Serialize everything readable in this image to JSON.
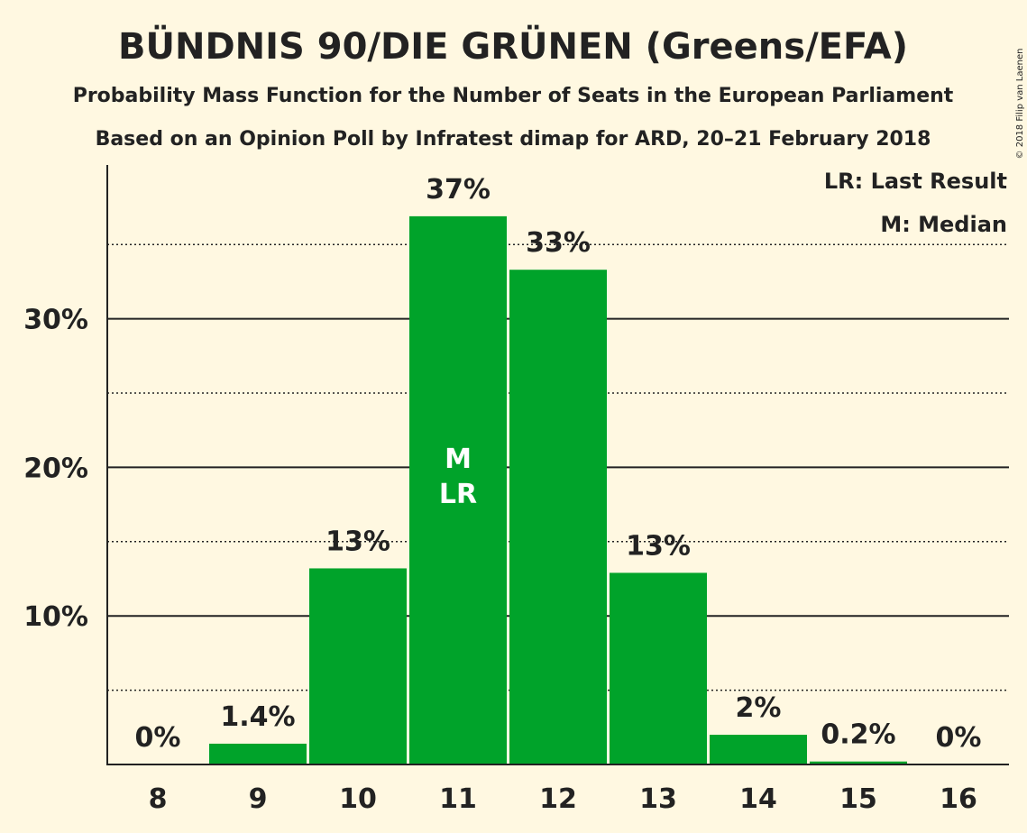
{
  "chart_data": {
    "type": "bar",
    "title": "BÜNDNIS 90/DIE GRÜNEN (Greens/EFA)",
    "subtitle": "Probability Mass Function for the Number of Seats in the European Parliament",
    "subtitle2": "Based on an Opinion Poll by Infratest dimap for ARD, 20–21 February 2018",
    "copyright": "© 2018 Filip van Laenen",
    "categories": [
      "8",
      "9",
      "10",
      "11",
      "12",
      "13",
      "14",
      "15",
      "16"
    ],
    "values": [
      0,
      1.4,
      13.2,
      36.9,
      33.3,
      12.9,
      2.0,
      0.2,
      0
    ],
    "value_labels": [
      "0%",
      "1.4%",
      "13%",
      "37%",
      "33%",
      "13%",
      "2%",
      "0.2%",
      "0%"
    ],
    "ylim": [
      0,
      40
    ],
    "yticks": [
      10,
      20,
      30
    ],
    "ytick_labels": [
      "10%",
      "20%",
      "30%"
    ],
    "minor_gridlines": [
      5,
      15,
      25,
      35
    ],
    "bar_color": "#00a32a",
    "median_label": "M",
    "last_result_label": "LR",
    "median_category": "11",
    "last_result_category": "11",
    "legend": [
      "LR: Last Result",
      "M: Median"
    ],
    "legend_position": "top-right"
  }
}
